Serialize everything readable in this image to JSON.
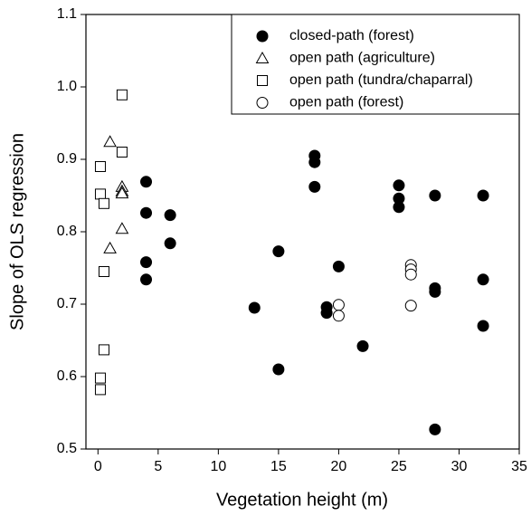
{
  "chart_data": {
    "type": "scatter",
    "x_label": "Vegetation height (m)",
    "y_label": "Slope of OLS regression",
    "xlim": [
      -1,
      35
    ],
    "ylim": [
      0.5,
      1.1
    ],
    "xticks": [
      0,
      5,
      10,
      15,
      20,
      25,
      30,
      35
    ],
    "yticks": [
      0.5,
      0.6,
      0.7,
      0.8,
      0.9,
      {
        "value": 1.0,
        "label": "1.0"
      },
      1.1
    ],
    "grid": false,
    "legend": "upper-right",
    "series": [
      {
        "name": "closed-path (forest)",
        "color": "#000000",
        "marker": "filled-circle",
        "x": [
          4,
          4,
          6,
          6,
          4,
          4,
          13,
          15,
          15,
          18,
          18,
          18,
          19,
          19,
          20,
          22,
          25,
          25,
          25,
          28,
          28,
          28,
          28,
          32,
          32,
          32
        ],
        "values": [
          0.869,
          0.826,
          0.823,
          0.784,
          0.758,
          0.734,
          0.695,
          0.773,
          0.61,
          0.905,
          0.896,
          0.862,
          0.696,
          0.688,
          0.752,
          0.642,
          0.864,
          0.846,
          0.834,
          0.85,
          0.722,
          0.717,
          0.527,
          0.85,
          0.734,
          0.67
        ]
      },
      {
        "name": "open path (agriculture)",
        "color": "#000000",
        "marker": "open-triangle",
        "x": [
          1,
          2,
          2,
          2,
          2,
          1
        ],
        "values": [
          0.924,
          0.862,
          0.856,
          0.853,
          0.804,
          0.777
        ]
      },
      {
        "name": "open path (tundra/chaparral)",
        "color": "#000000",
        "marker": "open-square",
        "x": [
          2,
          2,
          0.2,
          0.2,
          0.5,
          0.5,
          0.5,
          0.2,
          0.2
        ],
        "values": [
          0.989,
          0.91,
          0.89,
          0.852,
          0.839,
          0.745,
          0.637,
          0.598,
          0.582
        ]
      },
      {
        "name": "open path (forest)",
        "color": "#000000",
        "marker": "open-circle",
        "x": [
          20,
          20,
          26,
          26,
          26,
          26
        ],
        "values": [
          0.699,
          0.684,
          0.754,
          0.748,
          0.741,
          0.698
        ]
      }
    ]
  }
}
